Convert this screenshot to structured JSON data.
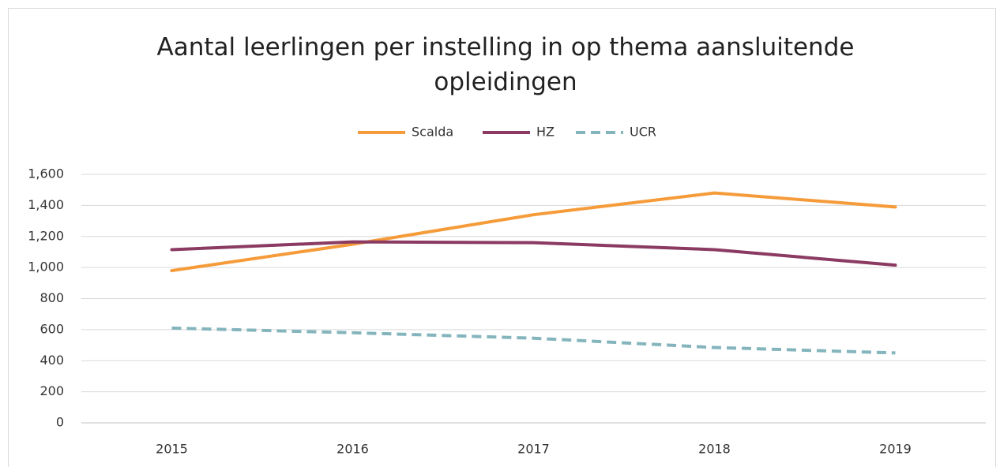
{
  "chart_data": {
    "type": "line",
    "title": "Aantal leerlingen per instelling in op thema aansluitende opleidingen",
    "categories": [
      "2015",
      "2016",
      "2017",
      "2018",
      "2019"
    ],
    "series": [
      {
        "name": "Scalda",
        "color": "#f59b3a",
        "dash": false,
        "values": [
          980,
          1150,
          1340,
          1480,
          1390
        ]
      },
      {
        "name": "HZ",
        "color": "#8b3a62",
        "dash": false,
        "values": [
          1115,
          1165,
          1160,
          1115,
          1015
        ]
      },
      {
        "name": "UCR",
        "color": "#84b5bd",
        "dash": true,
        "values": [
          610,
          580,
          545,
          485,
          450
        ]
      }
    ],
    "ylim": [
      0,
      1600
    ],
    "yticks": [
      0,
      200,
      400,
      600,
      800,
      {
        "value": 1000,
        "label": "1,000"
      },
      {
        "value": 1200,
        "label": "1,200"
      },
      {
        "value": 1400,
        "label": "1,400"
      },
      {
        "value": 1600,
        "label": "1,600"
      }
    ],
    "grid": true,
    "legend": "top"
  }
}
